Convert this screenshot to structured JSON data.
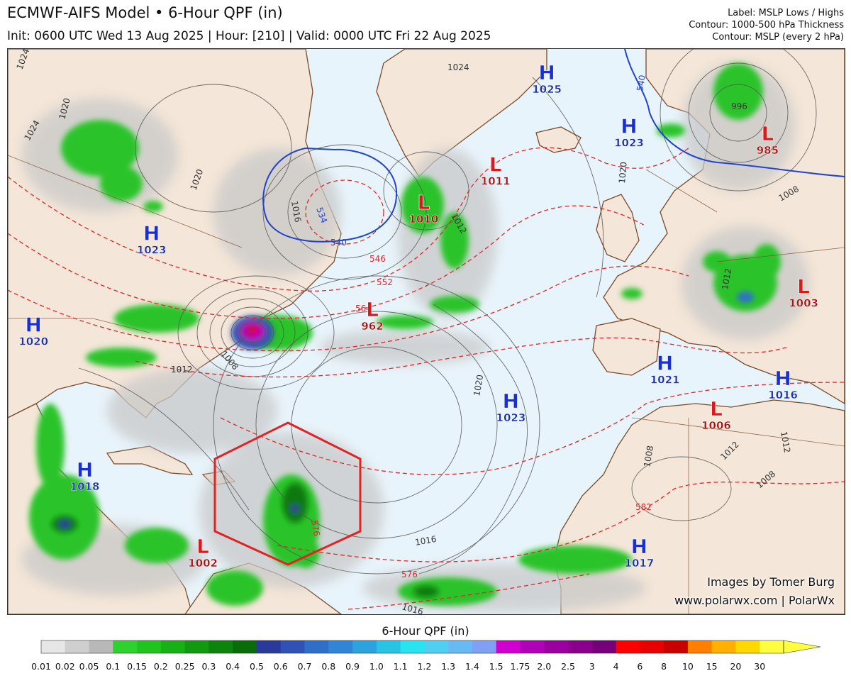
{
  "header": {
    "title": "ECMWF-AIFS Model • 6-Hour QPF (in)",
    "subtitle": "Init: 0600 UTC Wed 13 Aug 2025 | Hour: [210] | Valid: 0000 UTC Fri 22 Aug 2025",
    "legend_lines": [
      "Label: MSLP Lows / Highs",
      "Contour: 1000-500 hPa Thickness",
      "Contour: MSLP (every 2 hPa)"
    ]
  },
  "watermark": {
    "line1": "Images by Tomer Burg",
    "line2": "www.polarwx.com | PolarWx"
  },
  "colorbar": {
    "title": "6-Hour QPF (in)",
    "ticks": [
      "0.01",
      "0.02",
      "0.05",
      "0.1",
      "0.15",
      "0.2",
      "0.25",
      "0.3",
      "0.4",
      "0.5",
      "0.6",
      "0.7",
      "0.8",
      "0.9",
      "1.0",
      "1.1",
      "1.2",
      "1.3",
      "1.4",
      "1.5",
      "1.75",
      "2.0",
      "2.5",
      "3",
      "4",
      "6",
      "8",
      "10",
      "15",
      "20",
      "30"
    ],
    "colors": [
      "#e6e6e6",
      "#cfcfcf",
      "#b8b8b8",
      "#2fd12f",
      "#1fc41f",
      "#17b017",
      "#119a11",
      "#0c840c",
      "#086c08",
      "#2a3a9a",
      "#2f52b4",
      "#2f6fca",
      "#2f86d6",
      "#2ba3dc",
      "#27c4e4",
      "#27e4f0",
      "#4fd0f2",
      "#68baf4",
      "#7fa0f4",
      "#d000d0",
      "#b000b8",
      "#9a009f",
      "#8a008a",
      "#76007a",
      "#ff0000",
      "#e80000",
      "#c80000",
      "#ff8000",
      "#ffb000",
      "#ffd800",
      "#ffff40"
    ]
  },
  "pressure_systems": [
    {
      "type": "H",
      "value": "1023",
      "kind": "high",
      "lon": -105,
      "lat": 53
    },
    {
      "type": "H",
      "value": "1020",
      "kind": "high",
      "lon": -128,
      "lat": 41
    },
    {
      "type": "H",
      "value": "1018",
      "kind": "high",
      "lon": -118,
      "lat": 22
    },
    {
      "type": "H",
      "value": "1025",
      "kind": "high",
      "lon": -28,
      "lat": 74
    },
    {
      "type": "H",
      "value": "1023",
      "kind": "high",
      "lon": -12,
      "lat": 67
    },
    {
      "type": "H",
      "value": "1023",
      "kind": "high",
      "lon": -35,
      "lat": 31
    },
    {
      "type": "H",
      "value": "1021",
      "kind": "high",
      "lon": -5,
      "lat": 36
    },
    {
      "type": "H",
      "value": "1016",
      "kind": "high",
      "lon": 18,
      "lat": 34
    },
    {
      "type": "H",
      "value": "1017",
      "kind": "high",
      "lon": -10,
      "lat": 12
    },
    {
      "type": "L",
      "value": "1010",
      "kind": "low",
      "lon": -52,
      "lat": 57
    },
    {
      "type": "L",
      "value": "1011",
      "kind": "low",
      "lon": -38,
      "lat": 62
    },
    {
      "type": "L",
      "value": "962",
      "kind": "low",
      "lon": -62,
      "lat": 43
    },
    {
      "type": "L",
      "value": "985",
      "kind": "low",
      "lon": 15,
      "lat": 66
    },
    {
      "type": "L",
      "value": "1003",
      "kind": "low",
      "lon": 22,
      "lat": 46
    },
    {
      "type": "L",
      "value": "1006",
      "kind": "low",
      "lon": 5,
      "lat": 30
    },
    {
      "type": "L",
      "value": "1002",
      "kind": "low",
      "lon": -95,
      "lat": 12
    }
  ]
}
